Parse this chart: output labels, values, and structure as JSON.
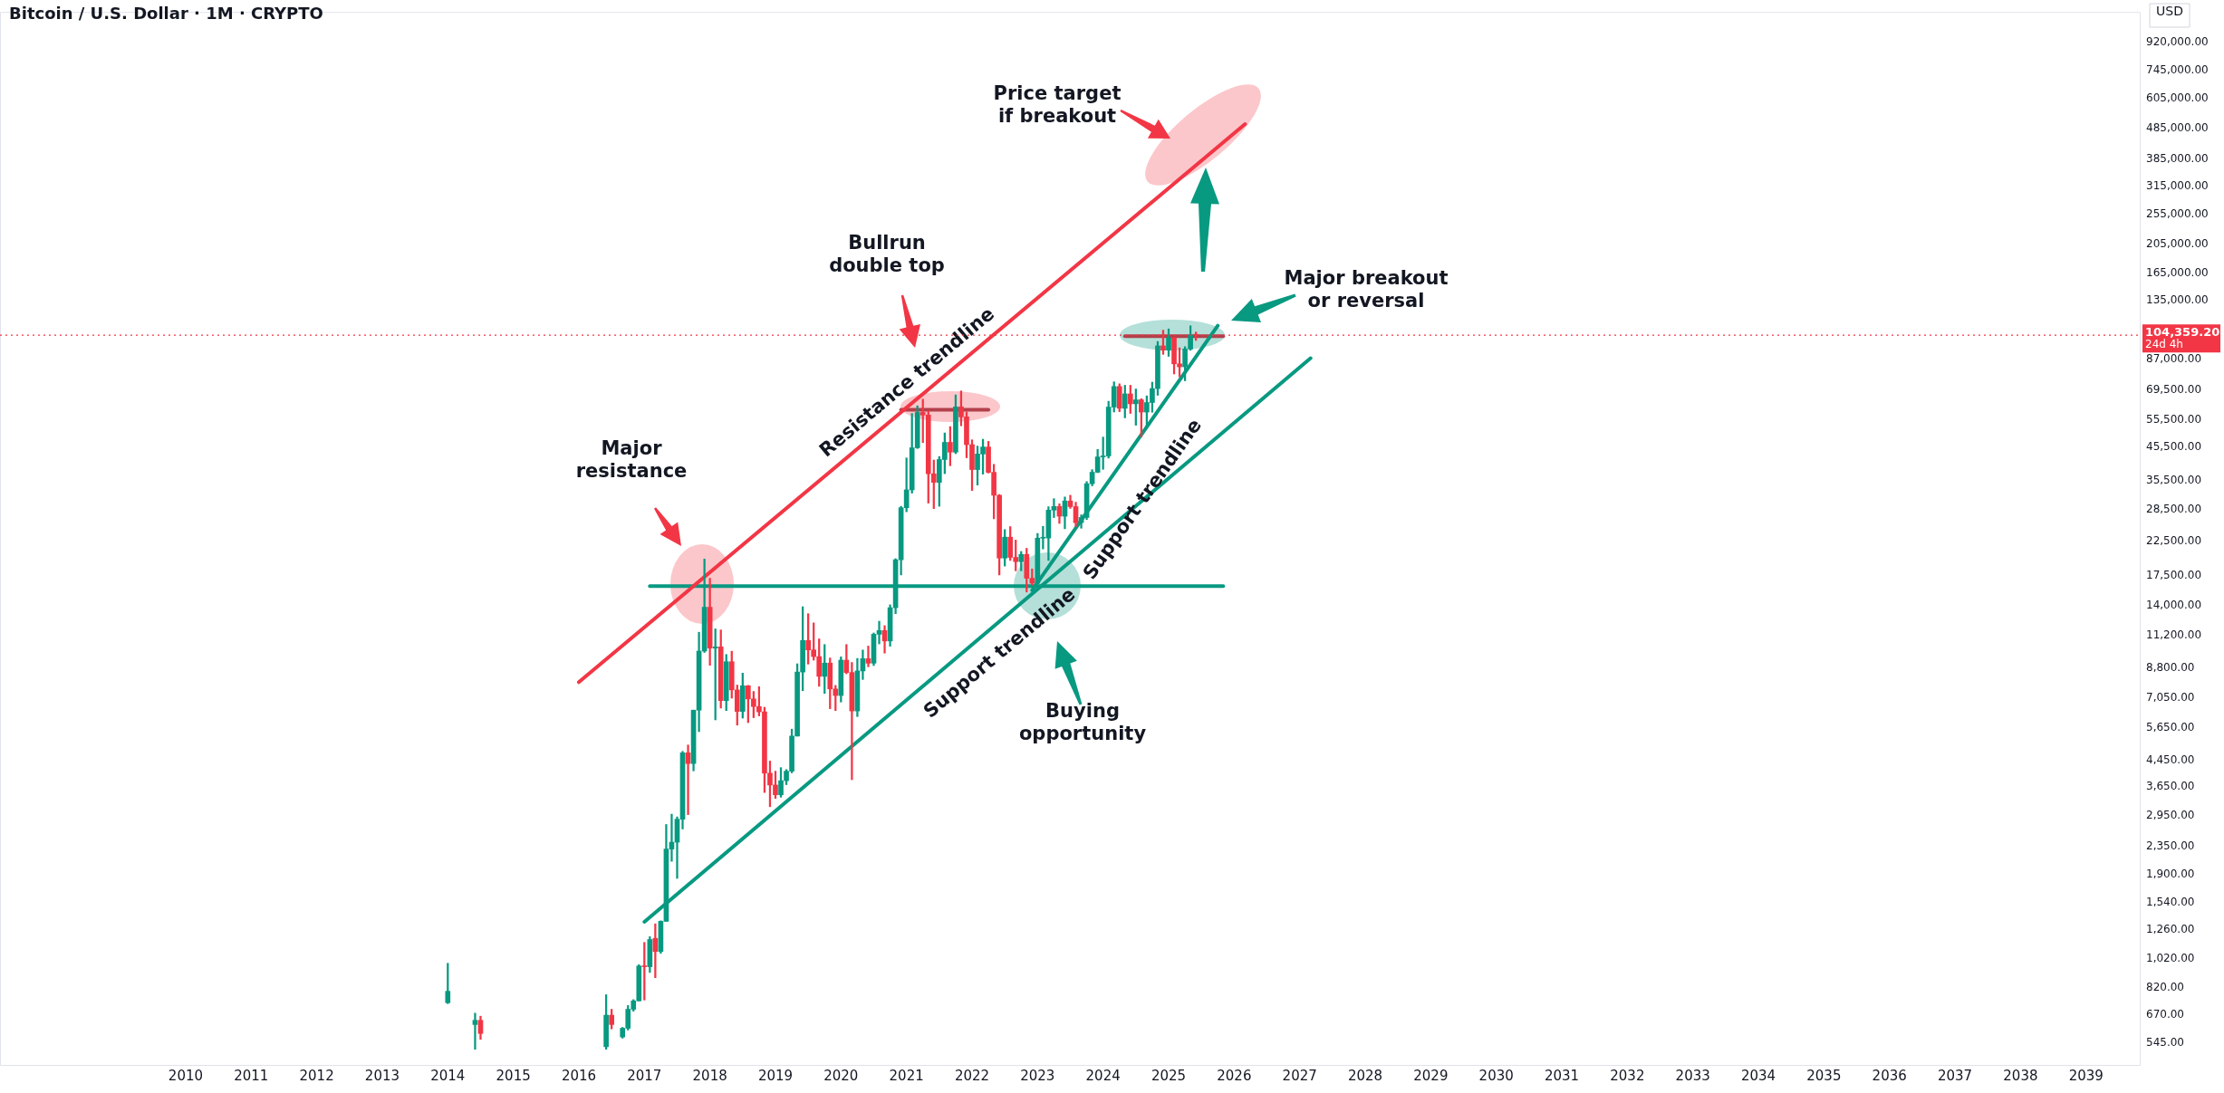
{
  "chart_data": {
    "type": "candlestick",
    "title": "Bitcoin / U.S. Dollar · 1M · CRYPTO",
    "x": [
      "2014-01",
      "2014-06",
      "2014-07",
      "2016-06",
      "2016-07",
      "2016-09",
      "2016-10",
      "2016-11",
      "2016-12",
      "2017-01",
      "2017-02",
      "2017-03",
      "2017-04",
      "2017-05",
      "2017-06",
      "2017-07",
      "2017-08",
      "2017-09",
      "2017-10",
      "2017-11",
      "2017-12",
      "2018-01",
      "2018-02",
      "2018-03",
      "2018-04",
      "2018-05",
      "2018-06",
      "2018-07",
      "2018-08",
      "2018-09",
      "2018-10",
      "2018-11",
      "2018-12",
      "2019-01",
      "2019-02",
      "2019-03",
      "2019-04",
      "2019-05",
      "2019-06",
      "2019-07",
      "2019-08",
      "2019-09",
      "2019-10",
      "2019-11",
      "2019-12",
      "2020-01",
      "2020-02",
      "2020-03",
      "2020-04",
      "2020-05",
      "2020-06",
      "2020-07",
      "2020-08",
      "2020-09",
      "2020-10",
      "2020-11",
      "2020-12",
      "2021-01",
      "2021-02",
      "2021-03",
      "2021-04",
      "2021-05",
      "2021-06",
      "2021-07",
      "2021-08",
      "2021-09",
      "2021-10",
      "2021-11",
      "2021-12",
      "2022-01",
      "2022-02",
      "2022-03",
      "2022-04",
      "2022-05",
      "2022-06",
      "2022-07",
      "2022-08",
      "2022-09",
      "2022-10",
      "2022-11",
      "2022-12",
      "2023-01",
      "2023-02",
      "2023-03",
      "2023-04",
      "2023-05",
      "2023-06",
      "2023-07",
      "2023-08",
      "2023-09",
      "2023-10",
      "2023-11",
      "2023-12",
      "2024-01",
      "2024-02",
      "2024-03",
      "2024-04",
      "2024-05",
      "2024-06",
      "2024-07",
      "2024-08",
      "2024-09",
      "2024-10",
      "2024-11",
      "2024-12",
      "2025-01",
      "2025-02",
      "2025-03",
      "2025-04",
      "2025-05",
      "2025-06"
    ],
    "ohlc": [
      [
        735,
        985,
        730,
        800
      ],
      [
        625,
        680,
        520,
        645
      ],
      [
        645,
        665,
        560,
        585
      ],
      [
        530,
        780,
        520,
        670
      ],
      [
        670,
        700,
        605,
        625
      ],
      [
        570,
        612,
        565,
        608
      ],
      [
        608,
        720,
        600,
        700
      ],
      [
        700,
        752,
        690,
        745
      ],
      [
        745,
        975,
        745,
        965
      ],
      [
        965,
        1150,
        750,
        960
      ],
      [
        960,
        1200,
        920,
        1175
      ],
      [
        1185,
        1320,
        885,
        1075
      ],
      [
        1075,
        1350,
        1060,
        1345
      ],
      [
        1345,
        2760,
        1345,
        2300
      ],
      [
        2300,
        2980,
        2100,
        2420
      ],
      [
        2420,
        2920,
        1850,
        2870
      ],
      [
        2870,
        4750,
        2670,
        4700
      ],
      [
        4700,
        4980,
        2970,
        4340
      ],
      [
        4340,
        6450,
        4110,
        6450
      ],
      [
        6450,
        11500,
        5500,
        10000
      ],
      [
        10000,
        19800,
        9900,
        13850
      ],
      [
        13850,
        17170,
        9000,
        10220
      ],
      [
        10220,
        11790,
        6000,
        10320
      ],
      [
        10320,
        11700,
        6550,
        6925
      ],
      [
        6925,
        9750,
        6430,
        9240
      ],
      [
        9240,
        9990,
        7050,
        7495
      ],
      [
        7495,
        7770,
        5770,
        6390
      ],
      [
        6390,
        8490,
        6080,
        7730
      ],
      [
        7730,
        7750,
        5880,
        7010
      ],
      [
        7010,
        7410,
        6100,
        6625
      ],
      [
        6625,
        7680,
        6180,
        6370
      ],
      [
        6370,
        6590,
        3500,
        4040
      ],
      [
        4040,
        4420,
        3150,
        3700
      ],
      [
        3700,
        4100,
        3350,
        3440
      ],
      [
        3440,
        4210,
        3380,
        3820
      ],
      [
        3820,
        4150,
        3710,
        4100
      ],
      [
        4100,
        5600,
        4050,
        5320
      ],
      [
        5320,
        9100,
        5320,
        8560
      ],
      [
        8560,
        13900,
        7450,
        10820
      ],
      [
        10820,
        13200,
        9080,
        10090
      ],
      [
        10090,
        12330,
        9350,
        9600
      ],
      [
        9600,
        10950,
        7700,
        8290
      ],
      [
        8290,
        10500,
        7300,
        9150
      ],
      [
        9150,
        9500,
        6520,
        7550
      ],
      [
        7550,
        7750,
        6430,
        7190
      ],
      [
        7190,
        9580,
        6850,
        9350
      ],
      [
        9350,
        10500,
        8450,
        8530
      ],
      [
        8530,
        9190,
        3850,
        6410
      ],
      [
        6410,
        9470,
        6150,
        8630
      ],
      [
        8630,
        10080,
        8100,
        9450
      ],
      [
        9450,
        10380,
        8900,
        9140
      ],
      [
        9140,
        11440,
        8980,
        11330
      ],
      [
        11330,
        12480,
        10550,
        11650
      ],
      [
        11650,
        12080,
        9850,
        10780
      ],
      [
        10780,
        14100,
        10370,
        13800
      ],
      [
        13800,
        19860,
        13200,
        19700
      ],
      [
        19700,
        29300,
        17600,
        28990
      ],
      [
        28990,
        41950,
        28130,
        33100
      ],
      [
        33100,
        58350,
        32300,
        45240
      ],
      [
        45240,
        61780,
        45000,
        58800
      ],
      [
        58800,
        64900,
        47000,
        57700
      ],
      [
        57700,
        59600,
        30000,
        37300
      ],
      [
        37300,
        41300,
        28800,
        35000
      ],
      [
        35000,
        42400,
        29300,
        41460
      ],
      [
        41460,
        50500,
        37330,
        47100
      ],
      [
        47100,
        52950,
        39600,
        43800
      ],
      [
        43800,
        67000,
        43300,
        61300
      ],
      [
        61300,
        69000,
        53250,
        56900
      ],
      [
        56900,
        59050,
        42000,
        46300
      ],
      [
        46300,
        47990,
        32950,
        38480
      ],
      [
        38480,
        45800,
        34300,
        43200
      ],
      [
        43200,
        48200,
        37200,
        45500
      ],
      [
        45500,
        47450,
        37500,
        37700
      ],
      [
        37700,
        40000,
        26700,
        31800
      ],
      [
        31800,
        31980,
        17600,
        19950
      ],
      [
        19950,
        24650,
        18800,
        23300
      ],
      [
        23300,
        25200,
        19600,
        20050
      ],
      [
        20050,
        22800,
        18150,
        19430
      ],
      [
        19430,
        20950,
        18150,
        20500
      ],
      [
        20500,
        21450,
        15500,
        17170
      ],
      [
        17170,
        18400,
        16300,
        16550
      ],
      [
        16550,
        23950,
        16500,
        23130
      ],
      [
        23130,
        25250,
        21350,
        23150
      ],
      [
        23150,
        29200,
        19600,
        28480
      ],
      [
        28480,
        31000,
        26950,
        29250
      ],
      [
        29250,
        29850,
        25800,
        27220
      ],
      [
        27220,
        31400,
        24800,
        30480
      ],
      [
        30480,
        31800,
        28850,
        29230
      ],
      [
        29230,
        30200,
        25200,
        25940
      ],
      [
        25940,
        27500,
        24900,
        26970
      ],
      [
        26970,
        35200,
        26550,
        34650
      ],
      [
        34650,
        38450,
        34100,
        37720
      ],
      [
        37720,
        44700,
        37600,
        42280
      ],
      [
        42280,
        48970,
        38550,
        42580
      ],
      [
        42580,
        63900,
        41900,
        61200
      ],
      [
        61200,
        73800,
        59000,
        71300
      ],
      [
        71300,
        72750,
        59150,
        60650
      ],
      [
        60650,
        71950,
        56500,
        67500
      ],
      [
        67500,
        71950,
        58400,
        62700
      ],
      [
        62700,
        70000,
        53500,
        64600
      ],
      [
        64600,
        65100,
        49000,
        58970
      ],
      [
        58970,
        66500,
        52550,
        63300
      ],
      [
        63300,
        73600,
        58900,
        70200
      ],
      [
        70200,
        99600,
        66800,
        96400
      ],
      [
        96400,
        108300,
        90500,
        93400
      ],
      [
        93400,
        109350,
        89200,
        102400
      ],
      [
        102400,
        102750,
        78250,
        84350
      ],
      [
        84350,
        95000,
        76600,
        82500
      ],
      [
        82500,
        95800,
        74400,
        94200
      ],
      [
        94200,
        111900,
        93300,
        104600
      ],
      [
        104600,
        106800,
        100400,
        104359.2
      ]
    ],
    "colors": [
      "#089981",
      "#089981",
      "#f23645",
      "#089981",
      "#f23645",
      "#089981",
      "#089981",
      "#089981",
      "#089981",
      "#f23645",
      "#089981",
      "#f23645",
      "#089981",
      "#089981",
      "#089981",
      "#089981",
      "#089981",
      "#f23645",
      "#089981",
      "#089981",
      "#089981",
      "#f23645",
      "#089981",
      "#f23645",
      "#089981",
      "#f23645",
      "#f23645",
      "#089981",
      "#f23645",
      "#f23645",
      "#f23645",
      "#f23645",
      "#f23645",
      "#f23645",
      "#089981",
      "#089981",
      "#089981",
      "#089981",
      "#089981",
      "#f23645",
      "#f23645",
      "#f23645",
      "#089981",
      "#f23645",
      "#f23645",
      "#089981",
      "#f23645",
      "#f23645",
      "#089981",
      "#089981",
      "#f23645",
      "#089981",
      "#089981",
      "#f23645",
      "#089981",
      "#089981",
      "#089981",
      "#089981",
      "#089981",
      "#089981",
      "#f23645",
      "#f23645",
      "#f23645",
      "#089981",
      "#089981",
      "#f23645",
      "#089981",
      "#f23645",
      "#f23645",
      "#f23645",
      "#089981",
      "#089981",
      "#f23645",
      "#f23645",
      "#f23645",
      "#089981",
      "#f23645",
      "#f23645",
      "#089981",
      "#f23645",
      "#f23645",
      "#089981",
      "#089981",
      "#089981",
      "#089981",
      "#f23645",
      "#089981",
      "#f23645",
      "#f23645",
      "#089981",
      "#089981",
      "#089981",
      "#089981",
      "#089981",
      "#089981",
      "#089981",
      "#f23645",
      "#089981",
      "#f23645",
      "#089981",
      "#f23645",
      "#089981",
      "#089981",
      "#089981",
      "#f23645",
      "#089981",
      "#f23645",
      "#f23645",
      "#089981",
      "#089981",
      "#f23645"
    ],
    "series": [
      {
        "type": "line",
        "color": "#f23645",
        "x": [
          "2016-01",
          "2026-03"
        ],
        "values": [
          7940,
          500000
        ]
      },
      {
        "type": "line",
        "color": "#089981",
        "x": [
          "2017-01",
          "2027-03"
        ],
        "values": [
          1340,
          88000
        ]
      },
      {
        "type": "line",
        "color": "#089981",
        "x": [
          "2022-12",
          "2025-10"
        ],
        "values": [
          15700,
          112000
        ]
      },
      {
        "type": "line",
        "color": "#089981",
        "x": [
          "2017-02",
          "2025-11"
        ],
        "values": [
          16200,
          16200
        ]
      },
      {
        "type": "line",
        "color": "#b2404a",
        "x": [
          "2020-12",
          "2022-04"
        ],
        "values": [
          60000,
          60000
        ]
      },
      {
        "type": "line",
        "color": "#b2404a",
        "x": [
          "2024-05",
          "2025-11"
        ],
        "values": [
          103500,
          103500
        ]
      }
    ],
    "xlim": [
      "2007-03",
      "2039-11"
    ],
    "xticks": [
      "2010",
      "2011",
      "2012",
      "2013",
      "2014",
      "2015",
      "2016",
      "2017",
      "2018",
      "2019",
      "2020",
      "2021",
      "2022",
      "2023",
      "2024",
      "2025",
      "2026",
      "2027",
      "2028",
      "2029",
      "2030",
      "2031",
      "2032",
      "2033",
      "2034",
      "2035",
      "2036",
      "2037",
      "2038",
      "2039"
    ],
    "ylim": [
      460,
      1150000
    ],
    "log": true,
    "yticks": [
      {
        "value": 545,
        "label": "545.00"
      },
      {
        "value": 670,
        "label": "670.00"
      },
      {
        "value": 820,
        "label": "820.00"
      },
      {
        "value": 1020,
        "label": "1,020.00"
      },
      {
        "value": 1260,
        "label": "1,260.00"
      },
      {
        "value": 1540,
        "label": "1,540.00"
      },
      {
        "value": 1900,
        "label": "1,900.00"
      },
      {
        "value": 2350,
        "label": "2,350.00"
      },
      {
        "value": 2950,
        "label": "2,950.00"
      },
      {
        "value": 3650,
        "label": "3,650.00"
      },
      {
        "value": 4450,
        "label": "4,450.00"
      },
      {
        "value": 5650,
        "label": "5,650.00"
      },
      {
        "value": 7050,
        "label": "7,050.00"
      },
      {
        "value": 8800,
        "label": "8,800.00"
      },
      {
        "value": 11200,
        "label": "11,200.00"
      },
      {
        "value": 14000,
        "label": "14,000.00"
      },
      {
        "value": 17500,
        "label": "17,500.00"
      },
      {
        "value": 22500,
        "label": "22,500.00"
      },
      {
        "value": 28500,
        "label": "28,500.00"
      },
      {
        "value": 35500,
        "label": "35,500.00"
      },
      {
        "value": 45500,
        "label": "45,500.00"
      },
      {
        "value": 55500,
        "label": "55,500.00"
      },
      {
        "value": 69500,
        "label": "69,500.00"
      },
      {
        "value": 87000,
        "label": "87,000.00"
      },
      {
        "value": 135000,
        "label": "135,000.00"
      },
      {
        "value": 165000,
        "label": "165,000.00"
      },
      {
        "value": 205000,
        "label": "205,000.00"
      },
      {
        "value": 255000,
        "label": "255,000.00"
      },
      {
        "value": 315000,
        "label": "315,000.00"
      },
      {
        "value": 385000,
        "label": "385,000.00"
      },
      {
        "value": 485000,
        "label": "485,000.00"
      },
      {
        "value": 605000,
        "label": "605,000.00"
      },
      {
        "value": 745000,
        "label": "745,000.00"
      },
      {
        "value": 920000,
        "label": "920,000.00"
      }
    ],
    "ref_lines": [
      {
        "axis": "y",
        "value": 104359.2,
        "label": "104,359.20",
        "color": "#f23645",
        "line_style": "dotted"
      }
    ],
    "annotations": [
      "Price target\nif breakout",
      "Bullrun\ndouble top",
      "Major\nresistance",
      "Major breakout\nor reversal",
      "Buying\nopportunity",
      "Resistance trendline",
      "Support trendline",
      "Support trendline",
      "24d 4h",
      "USD"
    ],
    "grid": false,
    "legend": false
  }
}
